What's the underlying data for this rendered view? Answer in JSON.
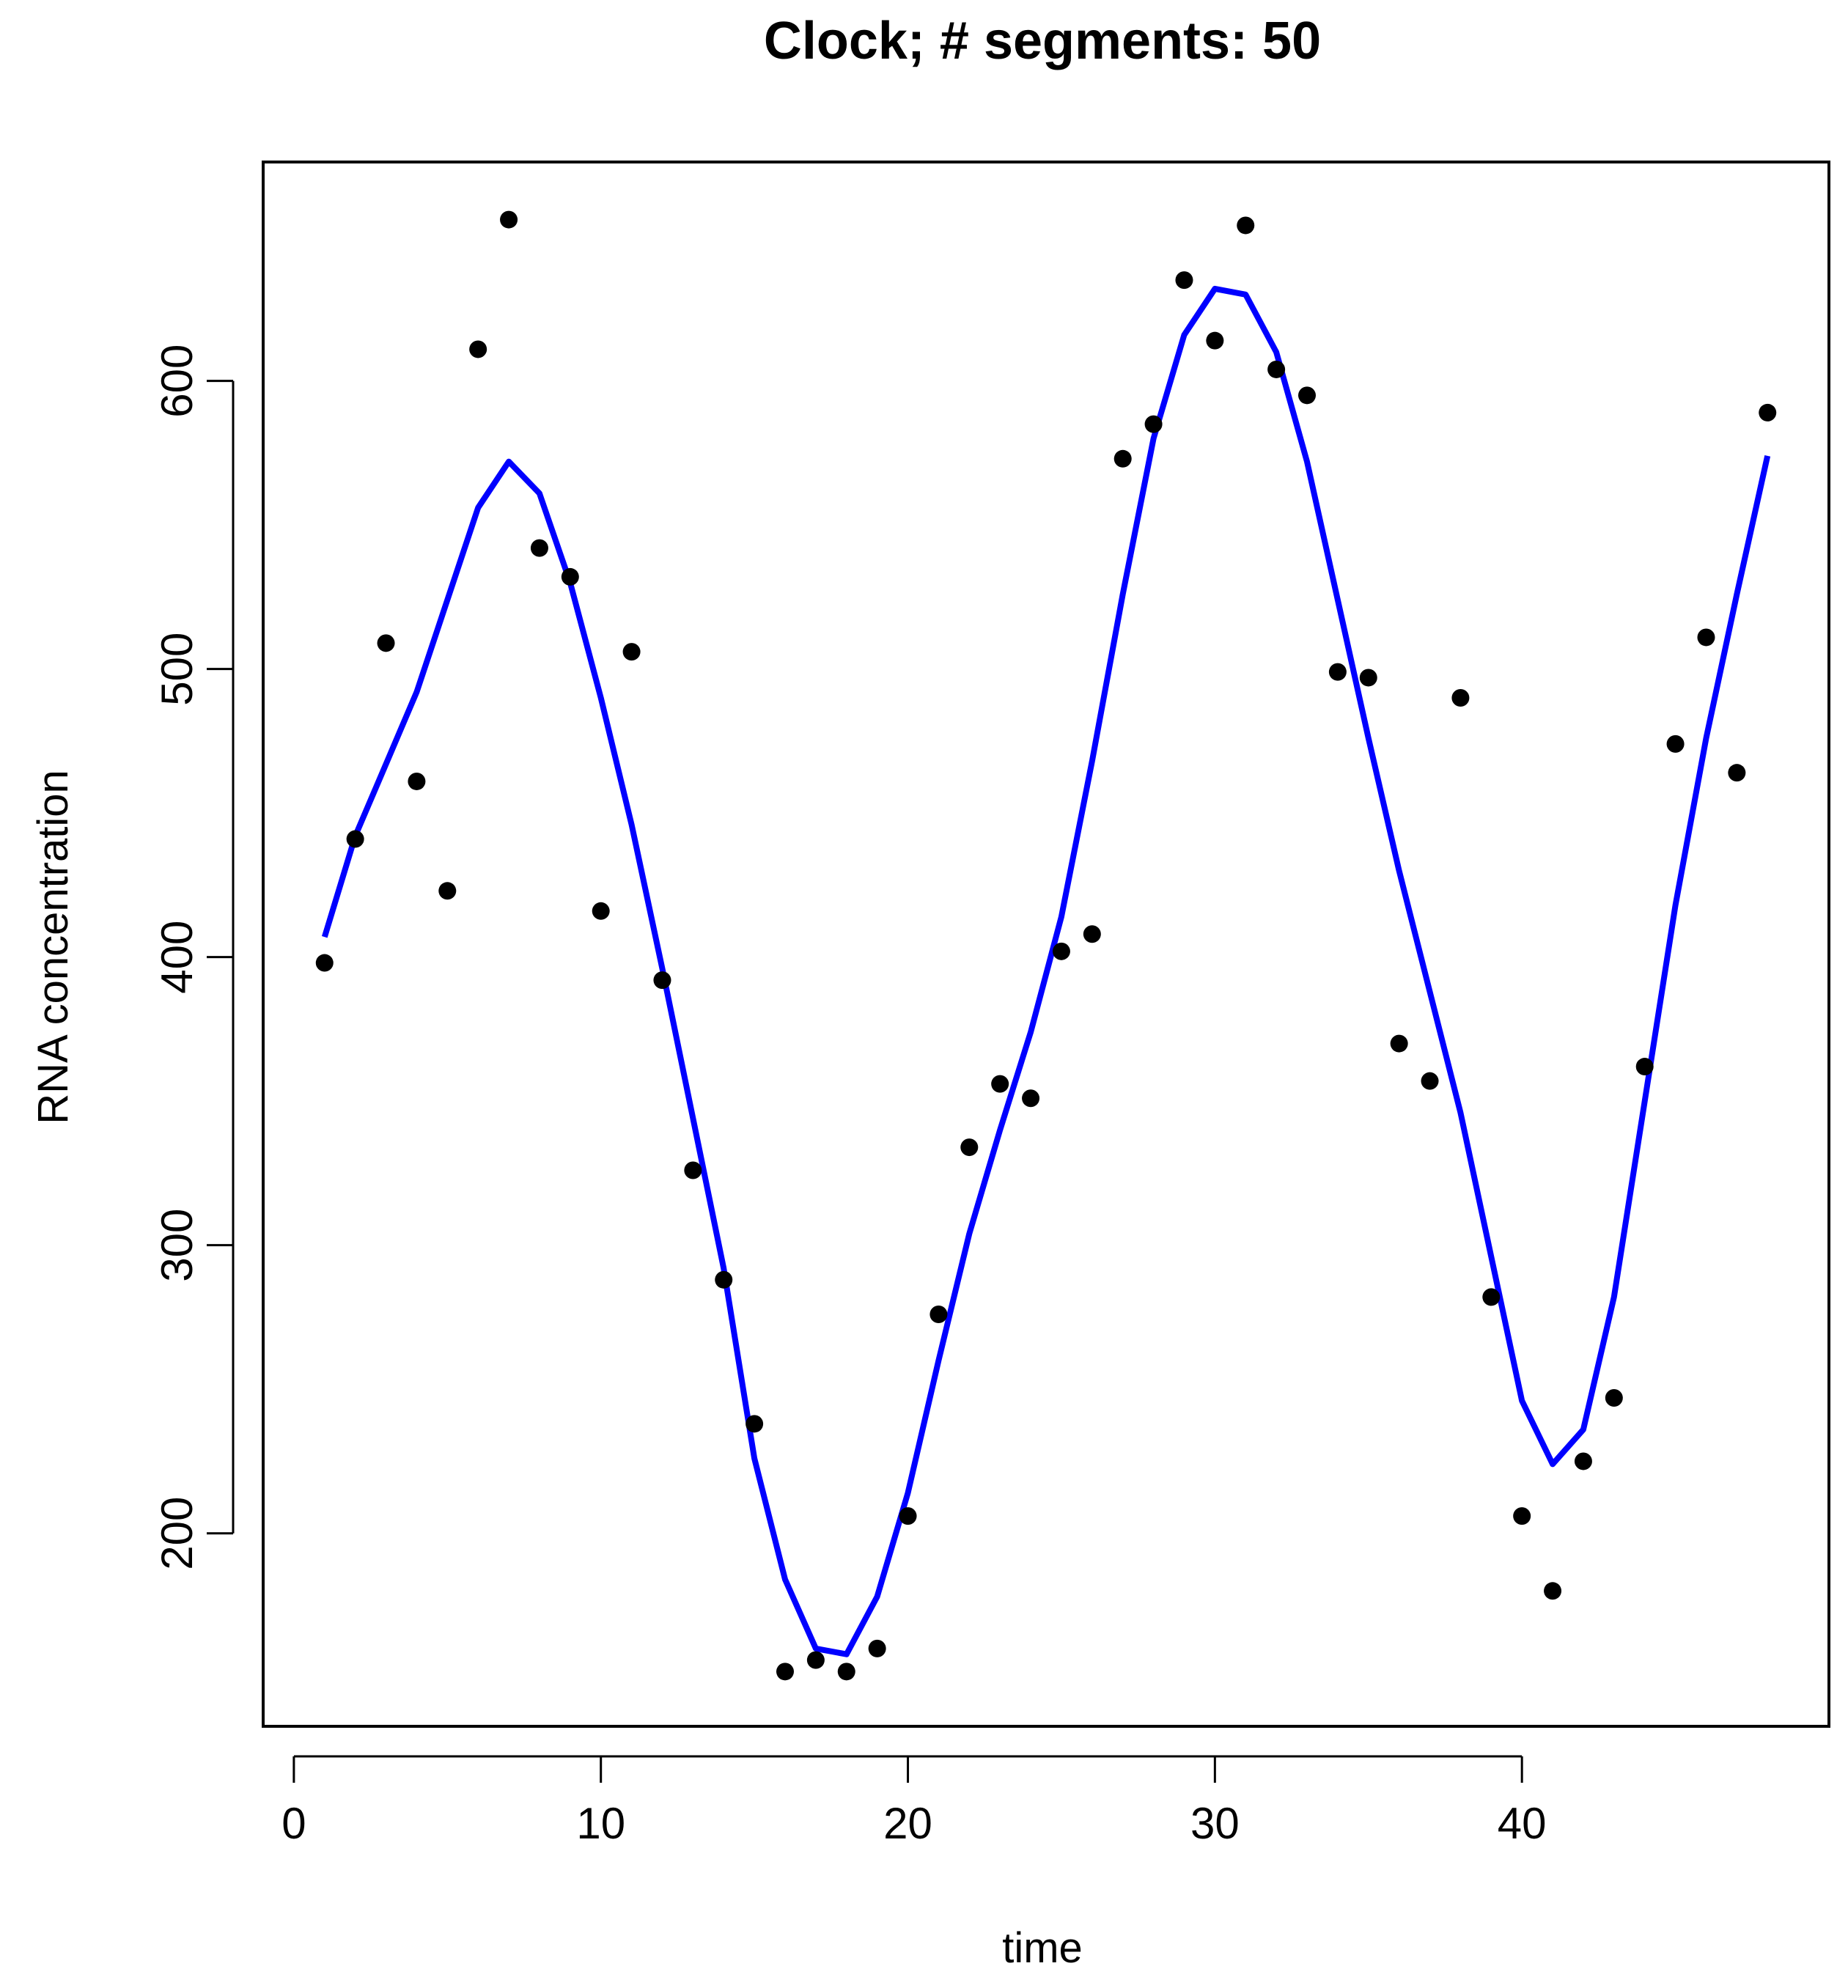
{
  "chart_data": {
    "type": "scatter",
    "title": "Clock; # segments: 50",
    "xlabel": "time",
    "ylabel": "RNA concentration",
    "xlim": [
      -1,
      50
    ],
    "ylim": [
      133,
      676
    ],
    "grid": false,
    "x_ticks": [
      0,
      10,
      20,
      30,
      40
    ],
    "y_ticks": [
      200,
      300,
      400,
      500,
      600
    ],
    "colors": {
      "points": "#000000",
      "line": "#0000ff",
      "frame": "#000000"
    },
    "series": [
      {
        "type": "scatter",
        "x": [
          1,
          2,
          3,
          4,
          5,
          6,
          7,
          8,
          9,
          10,
          11,
          12,
          13,
          14,
          15,
          16,
          17,
          18,
          19,
          20,
          21,
          22,
          23,
          24,
          25,
          26,
          27,
          28,
          29,
          30,
          31,
          32,
          33,
          34,
          35,
          36,
          37,
          38,
          39,
          40,
          41,
          42,
          43,
          44,
          45,
          46,
          47,
          48
        ],
        "values": [
          398,
          441,
          509,
          461,
          423,
          611,
          656,
          542,
          532,
          416,
          506,
          392,
          326,
          288,
          238,
          152,
          156,
          152,
          160,
          206,
          276,
          334,
          356,
          351,
          402,
          408,
          573,
          585,
          635,
          614,
          654,
          604,
          595,
          499,
          497,
          370,
          357,
          490,
          282,
          206,
          180,
          225,
          247,
          362,
          474,
          511,
          464,
          589
        ]
      },
      {
        "type": "line",
        "x": [
          1,
          2,
          3,
          4,
          5,
          6,
          7,
          8,
          9,
          10,
          11,
          12,
          13,
          14,
          15,
          16,
          17,
          18,
          19,
          20,
          21,
          22,
          23,
          24,
          25,
          26,
          27,
          28,
          29,
          30,
          31,
          32,
          33,
          34,
          35,
          36,
          37,
          38,
          39,
          40,
          41,
          42,
          43,
          44,
          45,
          46,
          47,
          48
        ],
        "values": [
          407,
          442,
          467,
          492,
          524,
          556,
          572,
          561,
          530,
          490,
          446,
          396,
          344,
          292,
          226,
          184,
          160,
          158,
          178,
          214,
          260,
          304,
          340,
          374,
          414,
          468,
          526,
          580,
          616,
          632,
          630,
          610,
          572,
          524,
          476,
          430,
          388,
          346,
          296,
          246,
          224,
          236,
          282,
          350,
          418,
          476,
          526,
          574
        ]
      }
    ]
  }
}
